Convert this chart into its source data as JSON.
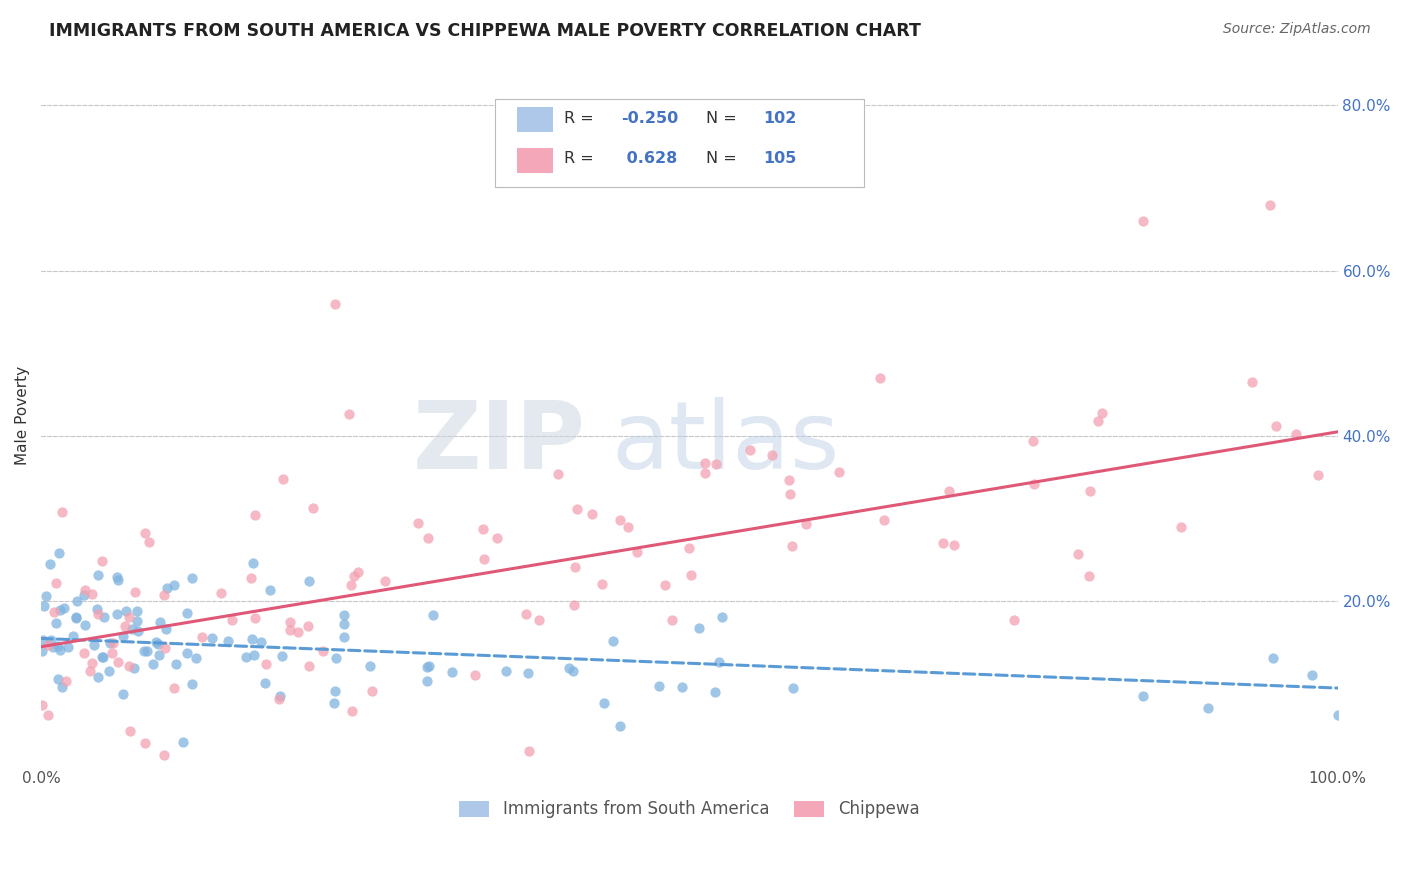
{
  "title": "IMMIGRANTS FROM SOUTH AMERICA VS CHIPPEWA MALE POVERTY CORRELATION CHART",
  "source": "Source: ZipAtlas.com",
  "ylabel": "Male Poverty",
  "xlim": [
    0.0,
    1.0
  ],
  "ylim": [
    0.0,
    0.85
  ],
  "x_tick_labels": [
    "0.0%",
    "100.0%"
  ],
  "y_tick_labels": [
    "20.0%",
    "40.0%",
    "60.0%",
    "80.0%"
  ],
  "y_tick_vals": [
    0.2,
    0.4,
    0.6,
    0.8
  ],
  "legend_bottom": [
    "Immigrants from South America",
    "Chippewa"
  ],
  "legend_bottom_colors": [
    "#adc8e8",
    "#f4a7b9"
  ],
  "scatter_blue_color": "#7fb3e0",
  "scatter_pink_color": "#f4a0b0",
  "trend_blue_color": "#5b9bd5",
  "trend_pink_color": "#e05878",
  "watermark_zip": "ZIP",
  "watermark_atlas": "atlas",
  "background_color": "#ffffff",
  "grid_color": "#c8c8c8",
  "blue_R": -0.25,
  "blue_N": 102,
  "pink_R": 0.628,
  "pink_N": 105,
  "blue_trend_x0": 0.0,
  "blue_trend_y0": 0.155,
  "blue_trend_x1": 1.0,
  "blue_trend_y1": 0.095,
  "pink_trend_x0": 0.0,
  "pink_trend_y0": 0.145,
  "pink_trend_x1": 1.0,
  "pink_trend_y1": 0.405
}
